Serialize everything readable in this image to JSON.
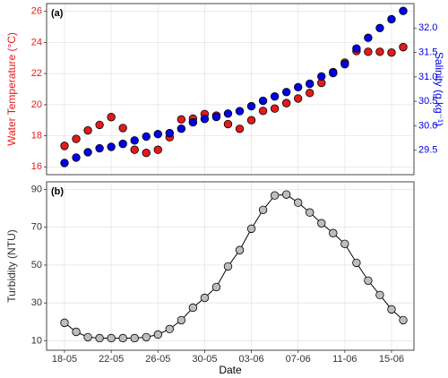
{
  "chart_data": [
    {
      "type": "scatter",
      "annotation": "(a)",
      "ylabel": "Water Temperature (°C)",
      "y2label": "Salinity (g kg⁻¹)",
      "categories": [
        "18-05",
        "19-05",
        "20-05",
        "21-05",
        "22-05",
        "23-05",
        "24-05",
        "25-05",
        "26-05",
        "27-05",
        "28-05",
        "29-05",
        "30-05",
        "31-05",
        "01-06",
        "02-06",
        "03-06",
        "04-06",
        "05-06",
        "06-06",
        "07-06",
        "08-06",
        "09-06",
        "10-06",
        "11-06",
        "12-06",
        "13-06",
        "14-06",
        "15-06",
        "16-06"
      ],
      "ylim": [
        15.5,
        26.5
      ],
      "yticks": [
        16,
        18,
        20,
        22,
        24,
        26
      ],
      "y2lim": [
        29.0,
        32.5
      ],
      "y2ticks": [
        29.5,
        {
          "value": 30.0,
          "label": "30.0"
        },
        30.5,
        {
          "value": 31.0,
          "label": "31.0"
        },
        31.5,
        {
          "value": 32.0,
          "label": "32.0"
        }
      ],
      "grid": true,
      "series": [
        {
          "name": "Water Temperature",
          "color": "#e31a1c",
          "axis": "y",
          "values": [
            17.35,
            17.8,
            18.35,
            18.7,
            19.2,
            18.5,
            17.1,
            16.9,
            17.1,
            17.9,
            19.05,
            19.1,
            19.4,
            19.3,
            18.75,
            18.45,
            19.0,
            19.6,
            19.75,
            20.1,
            20.4,
            20.75,
            21.4,
            22.1,
            22.7,
            23.45,
            23.4,
            23.4,
            23.35,
            23.7
          ]
        },
        {
          "name": "Salinity",
          "color": "#0000e6",
          "axis": "y2",
          "values": [
            29.24,
            29.35,
            29.46,
            29.54,
            29.57,
            29.63,
            29.7,
            29.78,
            29.83,
            29.85,
            29.94,
            30.07,
            30.14,
            30.18,
            30.25,
            30.3,
            30.4,
            30.51,
            30.6,
            30.69,
            30.79,
            30.86,
            31.01,
            31.08,
            31.26,
            31.58,
            31.8,
            32.0,
            32.18,
            32.35
          ]
        }
      ]
    },
    {
      "type": "line",
      "annotation": "(b)",
      "ylabel": "Turbidity (NTU)",
      "xlabel": "Date",
      "categories": [
        "18-05",
        "19-05",
        "20-05",
        "21-05",
        "22-05",
        "23-05",
        "24-05",
        "25-05",
        "26-05",
        "27-05",
        "28-05",
        "29-05",
        "30-05",
        "31-05",
        "01-06",
        "02-06",
        "03-06",
        "04-06",
        "05-06",
        "06-06",
        "07-06",
        "08-06",
        "09-06",
        "10-06",
        "11-06",
        "12-06",
        "13-06",
        "14-06",
        "15-06",
        "16-06"
      ],
      "xticks": [
        "18-05",
        "22-05",
        "26-05",
        "30-05",
        "03-06",
        "07-06",
        "11-06",
        "15-06"
      ],
      "ylim": [
        5,
        94
      ],
      "yticks": [
        10,
        30,
        50,
        70,
        90
      ],
      "grid": true,
      "series": [
        {
          "name": "Turbidity",
          "color": "#bdbdbd",
          "line_color": "#000000",
          "values": [
            19.5,
            14.7,
            11.9,
            11.4,
            11.4,
            11.4,
            11.4,
            11.9,
            13.3,
            16.2,
            20.9,
            27.5,
            32.7,
            38.4,
            49.3,
            57.9,
            69.2,
            79.2,
            86.8,
            87.3,
            83,
            77.8,
            72.1,
            66.9,
            61.2,
            51.2,
            41.8,
            34.2,
            26.6,
            20.9
          ]
        }
      ]
    }
  ]
}
